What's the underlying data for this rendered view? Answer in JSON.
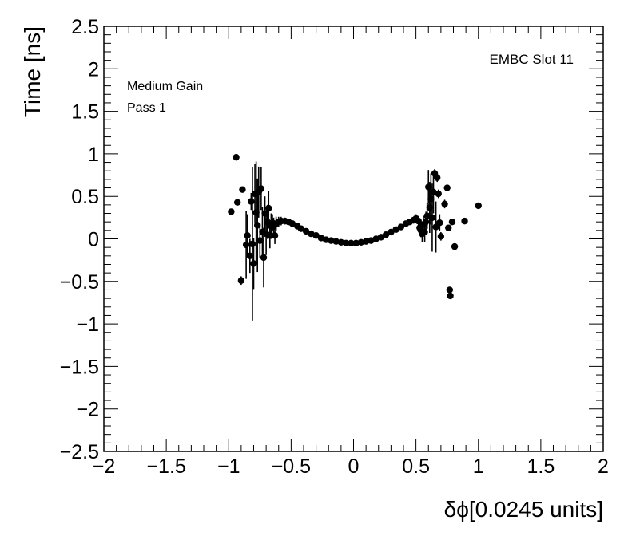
{
  "chart_data": {
    "type": "scatter",
    "title": "",
    "xlabel": "δϕ[0.0245 units]",
    "ylabel": "Time [ns]",
    "xlim": [
      -2,
      2
    ],
    "ylim": [
      -2.5,
      2.5
    ],
    "grid": false,
    "legend": "none",
    "annotations": [
      "EMBC Slot 11",
      "Medium Gain",
      "Pass 1"
    ],
    "x_ticks": [
      -2,
      -1.5,
      -1,
      -0.5,
      0,
      0.5,
      1,
      1.5,
      2
    ],
    "x_tick_labels": [
      "−2",
      "−1.5",
      "−1",
      "−0.5",
      "0",
      "0.5",
      "1",
      "1.5",
      "2"
    ],
    "y_ticks": [
      -2.5,
      -2,
      -1.5,
      -1,
      -0.5,
      0,
      0.5,
      1,
      1.5,
      2,
      2.5
    ],
    "y_tick_labels": [
      "−2.5",
      "−2",
      "−1.5",
      "−1",
      "−0.5",
      "0",
      "0.5",
      "1",
      "1.5",
      "2",
      "2.5"
    ],
    "marker_color": "#000000",
    "points": [
      {
        "x": -0.98,
        "y": 0.32,
        "err": 0.03
      },
      {
        "x": -0.94,
        "y": 0.96,
        "err": 0.03
      },
      {
        "x": -0.93,
        "y": 0.43,
        "err": 0.03
      },
      {
        "x": -0.9,
        "y": -0.49,
        "err": 0.05
      },
      {
        "x": -0.89,
        "y": 0.58,
        "err": 0.03
      },
      {
        "x": -0.86,
        "y": -0.07,
        "err": 0.4
      },
      {
        "x": -0.85,
        "y": 0.04,
        "err": 0.25
      },
      {
        "x": -0.83,
        "y": -0.2,
        "err": 0.2
      },
      {
        "x": -0.82,
        "y": 0.44,
        "err": 0.1
      },
      {
        "x": -0.81,
        "y": -0.06,
        "err": 0.9
      },
      {
        "x": -0.8,
        "y": -0.29,
        "err": 0.3
      },
      {
        "x": -0.79,
        "y": 0.53,
        "err": 0.35
      },
      {
        "x": -0.78,
        "y": 0.31,
        "err": 0.6
      },
      {
        "x": -0.77,
        "y": 0.16,
        "err": 0.55
      },
      {
        "x": -0.76,
        "y": 0.55,
        "err": 0.3
      },
      {
        "x": -0.75,
        "y": -0.02,
        "err": 0.2
      },
      {
        "x": -0.74,
        "y": 0.59,
        "err": 0.25
      },
      {
        "x": -0.73,
        "y": 0.08,
        "err": 0.3
      },
      {
        "x": -0.72,
        "y": -0.22,
        "err": 0.35
      },
      {
        "x": -0.71,
        "y": 0.3,
        "err": 0.2
      },
      {
        "x": -0.7,
        "y": 0.06,
        "err": 0.25
      },
      {
        "x": -0.69,
        "y": 0.2,
        "err": 0.2
      },
      {
        "x": -0.68,
        "y": 0.36,
        "err": 0.2
      },
      {
        "x": -0.67,
        "y": 0.04,
        "err": 0.15
      },
      {
        "x": -0.66,
        "y": 0.15,
        "err": 0.15
      },
      {
        "x": -0.65,
        "y": 0.19,
        "err": 0.1
      },
      {
        "x": -0.64,
        "y": 0.15,
        "err": 0.1
      },
      {
        "x": -0.63,
        "y": 0.04,
        "err": 0.1
      },
      {
        "x": -0.62,
        "y": 0.18,
        "err": 0.08
      },
      {
        "x": -0.6,
        "y": 0.2,
        "err": 0.06
      },
      {
        "x": -0.58,
        "y": 0.21,
        "err": 0.05
      },
      {
        "x": -0.55,
        "y": 0.21,
        "err": 0.04
      },
      {
        "x": -0.52,
        "y": 0.2,
        "err": 0.03
      },
      {
        "x": -0.49,
        "y": 0.18,
        "err": 0.02
      },
      {
        "x": -0.45,
        "y": 0.15,
        "err": 0.02
      },
      {
        "x": -0.42,
        "y": 0.12,
        "err": 0.02
      },
      {
        "x": -0.38,
        "y": 0.09,
        "err": 0.02
      },
      {
        "x": -0.34,
        "y": 0.06,
        "err": 0.01
      },
      {
        "x": -0.3,
        "y": 0.04,
        "err": 0.01
      },
      {
        "x": -0.26,
        "y": 0.01,
        "err": 0.01
      },
      {
        "x": -0.22,
        "y": -0.01,
        "err": 0.01
      },
      {
        "x": -0.18,
        "y": -0.02,
        "err": 0.01
      },
      {
        "x": -0.14,
        "y": -0.03,
        "err": 0.01
      },
      {
        "x": -0.1,
        "y": -0.04,
        "err": 0.01
      },
      {
        "x": -0.06,
        "y": -0.05,
        "err": 0.01
      },
      {
        "x": -0.02,
        "y": -0.05,
        "err": 0.01
      },
      {
        "x": 0.02,
        "y": -0.05,
        "err": 0.01
      },
      {
        "x": 0.06,
        "y": -0.04,
        "err": 0.01
      },
      {
        "x": 0.1,
        "y": -0.03,
        "err": 0.01
      },
      {
        "x": 0.14,
        "y": -0.02,
        "err": 0.01
      },
      {
        "x": 0.18,
        "y": 0.0,
        "err": 0.01
      },
      {
        "x": 0.22,
        "y": 0.02,
        "err": 0.01
      },
      {
        "x": 0.26,
        "y": 0.05,
        "err": 0.01
      },
      {
        "x": 0.3,
        "y": 0.08,
        "err": 0.02
      },
      {
        "x": 0.34,
        "y": 0.11,
        "err": 0.02
      },
      {
        "x": 0.38,
        "y": 0.14,
        "err": 0.02
      },
      {
        "x": 0.42,
        "y": 0.18,
        "err": 0.03
      },
      {
        "x": 0.45,
        "y": 0.2,
        "err": 0.03
      },
      {
        "x": 0.48,
        "y": 0.22,
        "err": 0.04
      },
      {
        "x": 0.5,
        "y": 0.24,
        "err": 0.05
      },
      {
        "x": 0.52,
        "y": 0.21,
        "err": 0.06
      },
      {
        "x": 0.53,
        "y": 0.13,
        "err": 0.08
      },
      {
        "x": 0.54,
        "y": 0.1,
        "err": 0.08
      },
      {
        "x": 0.55,
        "y": 0.06,
        "err": 0.1
      },
      {
        "x": 0.56,
        "y": 0.17,
        "err": 0.1
      },
      {
        "x": 0.57,
        "y": 0.08,
        "err": 0.12
      },
      {
        "x": 0.58,
        "y": 0.2,
        "err": 0.12
      },
      {
        "x": 0.59,
        "y": 0.27,
        "err": 0.15
      },
      {
        "x": 0.6,
        "y": 0.61,
        "err": 0.2
      },
      {
        "x": 0.61,
        "y": 0.37,
        "err": 0.3
      },
      {
        "x": 0.62,
        "y": 0.47,
        "err": 0.3
      },
      {
        "x": 0.63,
        "y": 0.25,
        "err": 0.4
      },
      {
        "x": 0.64,
        "y": 0.55,
        "err": 0.25
      },
      {
        "x": 0.65,
        "y": 0.77,
        "err": 0.05
      },
      {
        "x": 0.66,
        "y": 0.14,
        "err": 0.3
      },
      {
        "x": 0.67,
        "y": 0.72,
        "err": 0.05
      },
      {
        "x": 0.68,
        "y": 0.53,
        "err": 0.05
      },
      {
        "x": 0.69,
        "y": 0.19,
        "err": 0.1
      },
      {
        "x": 0.7,
        "y": 0.03,
        "err": 0.05
      },
      {
        "x": 0.73,
        "y": 0.41,
        "err": 0.05
      },
      {
        "x": 0.75,
        "y": 0.6,
        "err": 0.03
      },
      {
        "x": 0.76,
        "y": 0.13,
        "err": 0.03
      },
      {
        "x": 0.77,
        "y": -0.6,
        "err": 0.03
      },
      {
        "x": 0.775,
        "y": -0.67,
        "err": 0.03
      },
      {
        "x": 0.79,
        "y": 0.2,
        "err": 0.03
      },
      {
        "x": 0.81,
        "y": -0.09,
        "err": 0.03
      },
      {
        "x": 0.89,
        "y": 0.21,
        "err": 0.03
      },
      {
        "x": 1.0,
        "y": 0.39,
        "err": 0.03
      }
    ]
  }
}
